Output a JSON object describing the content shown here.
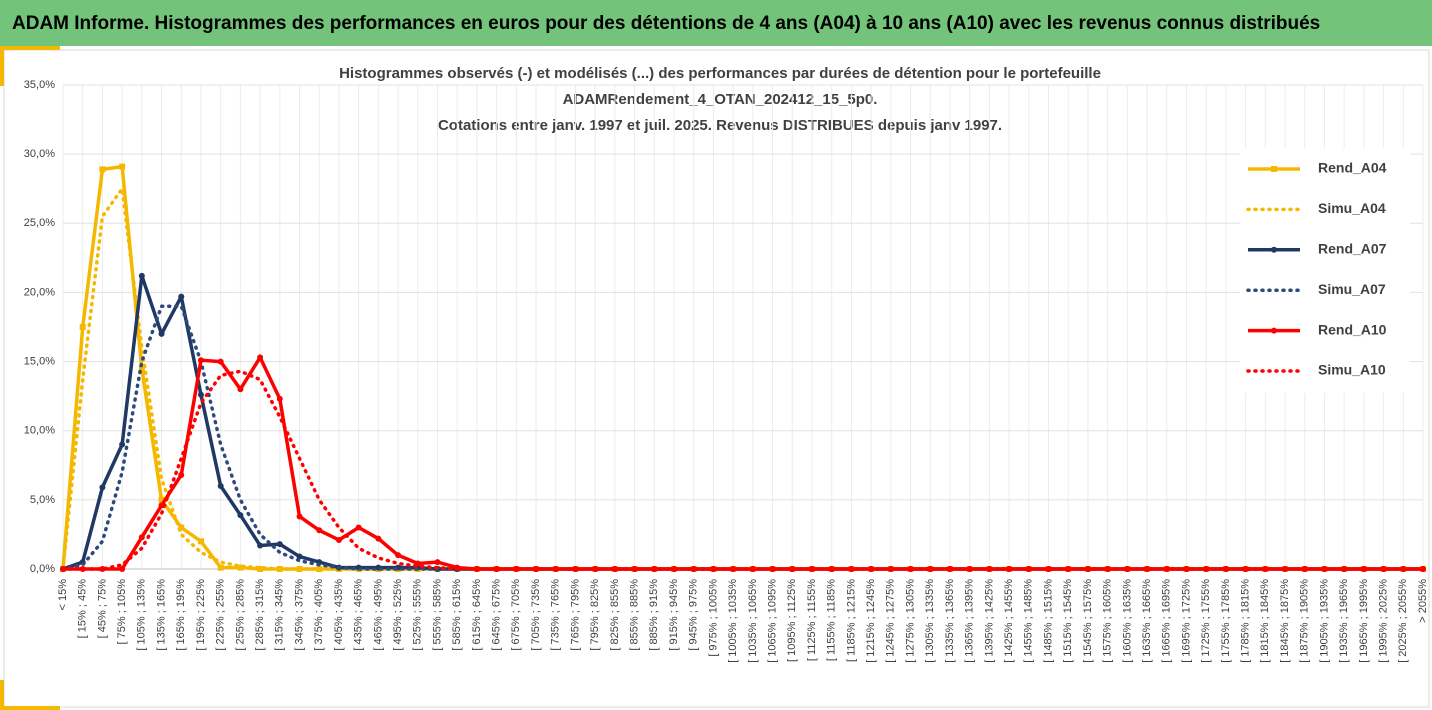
{
  "header": {
    "title": "ADAM Informe. Histogrammes des performances en euros pour des détentions de 4 ans (A04) à 10 ans (A10) avec les revenus connus distribués"
  },
  "chart_data": {
    "type": "line",
    "title": [
      "Histogrammes observés (-) et modélisés (...) des performances par durées de détention pour le portefeuille",
      "ADAMRendement_4_OTAN_202412_15_5p0.",
      "Cotations entre janv. 1997 et juil. 2025. Revenus DISTRIBUES depuis janv 1997."
    ],
    "categories": [
      "< 15%",
      "[ 15% ; 45%",
      "[ 45% ; 75%",
      "[ 75% ; 105%",
      "[ 105% ; 135%",
      "[ 135% ; 165%",
      "[ 165% ; 195%",
      "[ 195% ; 225%",
      "[ 225% ; 255%",
      "[ 255% ; 285%",
      "[ 285% ; 315%",
      "[ 315% ; 345%",
      "[ 345% ; 375%",
      "[ 375% ; 405%",
      "[ 405% ; 435%",
      "[ 435% ; 465%",
      "[ 465% ; 495%",
      "[ 495% ; 525%",
      "[ 525% ; 555%",
      "[ 555% ; 585%",
      "[ 585% ; 615%",
      "[ 615% ; 645%",
      "[ 645% ; 675%",
      "[ 675% ; 705%",
      "[ 705% ; 735%",
      "[ 735% ; 765%",
      "[ 765% ; 795%",
      "[ 795% ; 825%",
      "[ 825% ; 855%",
      "[ 855% ; 885%",
      "[ 885% ; 915%",
      "[ 915% ; 945%",
      "[ 945% ; 975%",
      "[ 975% ; 1005%",
      "[ 1005% ; 1035%",
      "[ 1035% ; 1065%",
      "[ 1065% ; 1095%",
      "[ 1095% ; 1125%",
      "[ 1125% ; 1155%",
      "[ 1155% ; 1185%",
      "[ 1185% ; 1215%",
      "[ 1215% ; 1245%",
      "[ 1245% ; 1275%",
      "[ 1275% ; 1305%",
      "[ 1305% ; 1335%",
      "[ 1335% ; 1365%",
      "[ 1365% ; 1395%",
      "[ 1395% ; 1425%",
      "[ 1425% ; 1455%",
      "[ 1455% ; 1485%",
      "[ 1485% ; 1515%",
      "[ 1515% ; 1545%",
      "[ 1545% ; 1575%",
      "[ 1575% ; 1605%",
      "[ 1605% ; 1635%",
      "[ 1635% ; 1665%",
      "[ 1665% ; 1695%",
      "[ 1695% ; 1725%",
      "[ 1725% ; 1755%",
      "[ 1755% ; 1785%",
      "[ 1785% ; 1815%",
      "[ 1815% ; 1845%",
      "[ 1845% ; 1875%",
      "[ 1875% ; 1905%",
      "[ 1905% ; 1935%",
      "[ 1935% ; 1965%",
      "[ 1965% ; 1995%",
      "[ 1995% ; 2025%",
      "[ 2025% ; 2055%",
      "> 2055%"
    ],
    "series": [
      {
        "name": "Rend_A04",
        "color": "#f5b800",
        "style": "solid",
        "marker": "square",
        "values": [
          0,
          17.5,
          28.9,
          29.1,
          14.5,
          5,
          3,
          2,
          0.1,
          0.1,
          0,
          0,
          0,
          0,
          0,
          0,
          0,
          0,
          0,
          0,
          0,
          0,
          0,
          0,
          0,
          0,
          0,
          0,
          0,
          0,
          0,
          0,
          0,
          0,
          0,
          0,
          0,
          0,
          0,
          0,
          0,
          0,
          0,
          0,
          0,
          0,
          0,
          0,
          0,
          0,
          0,
          0,
          0,
          0,
          0,
          0,
          0,
          0,
          0,
          0,
          0,
          0,
          0,
          0,
          0,
          0,
          0,
          0,
          0,
          0
        ]
      },
      {
        "name": "Simu_A04",
        "color": "#f5b800",
        "style": "dotted",
        "marker": "none",
        "values": [
          0,
          13.7,
          25.5,
          27.5,
          16,
          6.5,
          2.5,
          1.2,
          0.5,
          0.2,
          0.1,
          0,
          0,
          0,
          0,
          0,
          0,
          0,
          0,
          0,
          0,
          0,
          0,
          0,
          0,
          0,
          0,
          0,
          0,
          0,
          0,
          0,
          0,
          0,
          0,
          0,
          0,
          0,
          0,
          0,
          0,
          0,
          0,
          0,
          0,
          0,
          0,
          0,
          0,
          0,
          0,
          0,
          0,
          0,
          0,
          0,
          0,
          0,
          0,
          0,
          0,
          0,
          0,
          0,
          0,
          0,
          0,
          0,
          0,
          0
        ]
      },
      {
        "name": "Rend_A07",
        "color": "#1f3864",
        "style": "solid",
        "marker": "circle",
        "values": [
          0,
          0.5,
          5.9,
          9,
          21.2,
          17,
          19.7,
          12.6,
          6,
          3.9,
          1.7,
          1.8,
          0.9,
          0.5,
          0.1,
          0.1,
          0.1,
          0.1,
          0.1,
          0,
          0,
          0,
          0,
          0,
          0,
          0,
          0,
          0,
          0,
          0,
          0,
          0,
          0,
          0,
          0,
          0,
          0,
          0,
          0,
          0,
          0,
          0,
          0,
          0,
          0,
          0,
          0,
          0,
          0,
          0,
          0,
          0,
          0,
          0,
          0,
          0,
          0,
          0,
          0,
          0,
          0,
          0,
          0,
          0,
          0,
          0,
          0,
          0,
          0,
          0
        ]
      },
      {
        "name": "Simu_A07",
        "color": "#2e4a7a",
        "style": "dotted",
        "marker": "none",
        "values": [
          0,
          0.3,
          2,
          7,
          15,
          19,
          19,
          15,
          9,
          5,
          2.5,
          1.2,
          0.6,
          0.3,
          0.1,
          0,
          0,
          0,
          0,
          0,
          0,
          0,
          0,
          0,
          0,
          0,
          0,
          0,
          0,
          0,
          0,
          0,
          0,
          0,
          0,
          0,
          0,
          0,
          0,
          0,
          0,
          0,
          0,
          0,
          0,
          0,
          0,
          0,
          0,
          0,
          0,
          0,
          0,
          0,
          0,
          0,
          0,
          0,
          0,
          0,
          0,
          0,
          0,
          0,
          0,
          0,
          0,
          0,
          0,
          0
        ]
      },
      {
        "name": "Rend_A10",
        "color": "#ff0000",
        "style": "solid",
        "marker": "circle",
        "values": [
          0,
          0,
          0,
          0,
          2.3,
          4.6,
          6.8,
          15.1,
          15,
          13,
          15.3,
          12.3,
          3.8,
          2.8,
          2.1,
          3,
          2.2,
          1,
          0.4,
          0.5,
          0.1,
          0,
          0,
          0,
          0,
          0,
          0,
          0,
          0,
          0,
          0,
          0,
          0,
          0,
          0,
          0,
          0,
          0,
          0,
          0,
          0,
          0,
          0,
          0,
          0,
          0,
          0,
          0,
          0,
          0,
          0,
          0,
          0,
          0,
          0,
          0,
          0,
          0,
          0,
          0,
          0,
          0,
          0,
          0,
          0,
          0,
          0,
          0,
          0,
          0
        ]
      },
      {
        "name": "Simu_A10",
        "color": "#ff0000",
        "style": "dotted",
        "marker": "none",
        "values": [
          0,
          0,
          0,
          0.3,
          1.5,
          4,
          8,
          12,
          14,
          14.3,
          13.7,
          11,
          8,
          5,
          3,
          1.5,
          0.8,
          0.4,
          0.2,
          0.1,
          0,
          0,
          0,
          0,
          0,
          0,
          0,
          0,
          0,
          0,
          0,
          0,
          0,
          0,
          0,
          0,
          0,
          0,
          0,
          0,
          0,
          0,
          0,
          0,
          0,
          0,
          0,
          0,
          0,
          0,
          0,
          0,
          0,
          0,
          0,
          0,
          0,
          0,
          0,
          0,
          0,
          0,
          0,
          0,
          0,
          0,
          0,
          0,
          0,
          0
        ]
      }
    ],
    "ylim": [
      0,
      35
    ],
    "yticks": [
      {
        "value": 0,
        "label": "0,0%"
      },
      {
        "value": 5,
        "label": "5,0%"
      },
      {
        "value": 10,
        "label": "10,0%"
      },
      {
        "value": 15,
        "label": "15,0%"
      },
      {
        "value": 20,
        "label": "20,0%"
      },
      {
        "value": 25,
        "label": "25,0%"
      },
      {
        "value": 30,
        "label": "30,0%"
      },
      {
        "value": 35,
        "label": "35,0%"
      }
    ],
    "grid": true,
    "legend": "right"
  }
}
